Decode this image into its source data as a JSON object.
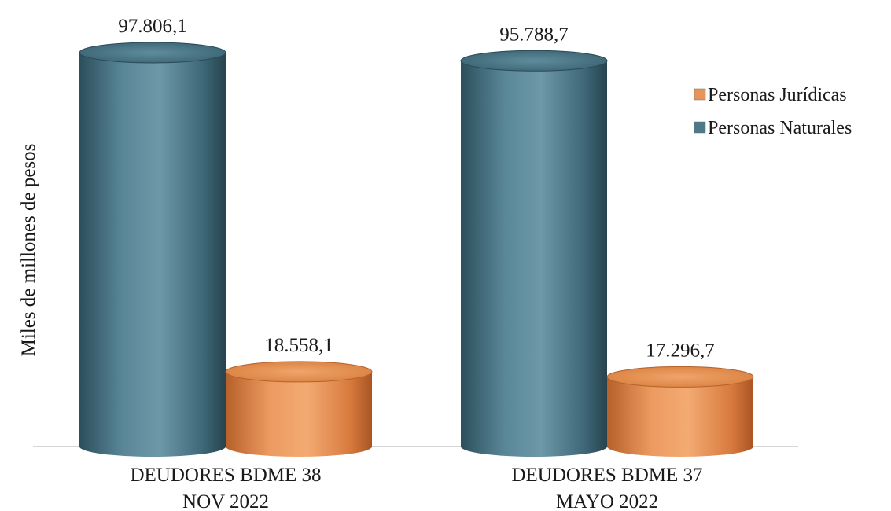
{
  "chart_data": {
    "type": "bar",
    "title": "",
    "xlabel": "",
    "ylabel": "Miles de millones de pesos",
    "categories": [
      [
        "DEUDORES BDME 38",
        "NOV 2022"
      ],
      [
        "DEUDORES BDME 37",
        "MAYO 2022"
      ]
    ],
    "series": [
      {
        "name": "Personas Naturales",
        "values": [
          97806.1,
          95788.7
        ],
        "labels": [
          "97.806,1",
          "95.788,7"
        ],
        "color": "#4d7a8a"
      },
      {
        "name": "Personas Jurídicas",
        "values": [
          18558.1,
          17296.7
        ],
        "labels": [
          "18.558,1",
          "17.296,7"
        ],
        "color": "#e8955a"
      }
    ],
    "legend_order": [
      "Personas Jurídicas",
      "Personas Naturales"
    ],
    "legend": "right",
    "ylim": [
      0,
      100000
    ],
    "grid": false,
    "shape": "cylinder"
  }
}
